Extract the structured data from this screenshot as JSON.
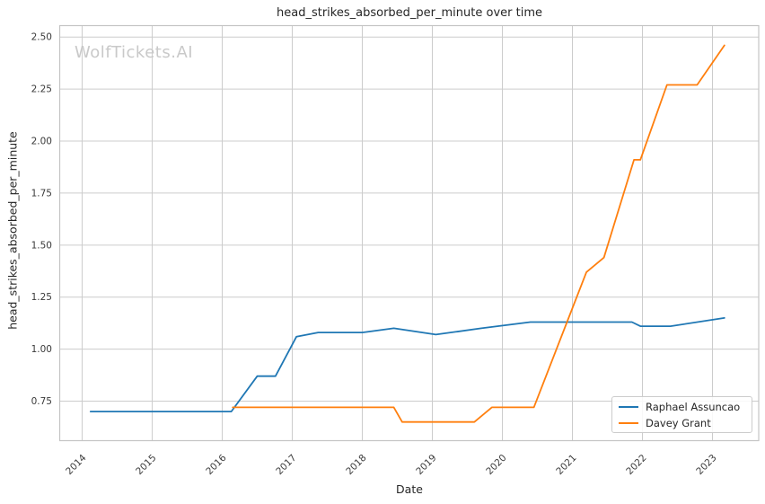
{
  "watermark": {
    "text": "WolfTickets.AI"
  },
  "chart_data": {
    "type": "line",
    "title": "head_strikes_absorbed_per_minute over time",
    "xlabel": "Date",
    "ylabel": "head_strikes_absorbed_per_minute",
    "xlim": [
      2013.68,
      2023.66
    ],
    "ylim": [
      0.56,
      2.555
    ],
    "xticks": [
      2014,
      2015,
      2016,
      2017,
      2018,
      2019,
      2020,
      2021,
      2022,
      2023
    ],
    "yticks": [
      0.75,
      1.0,
      1.25,
      1.5,
      1.75,
      2.0,
      2.25,
      2.5
    ],
    "grid": true,
    "grid_color": "#cccccc",
    "spine_color": "#c4c4c4",
    "tick_label_color": "#3a3a3a",
    "legend_position": "lower right",
    "series": [
      {
        "name": "Raphael Assuncao",
        "color": "#1f77b4",
        "points": [
          [
            2014.12,
            0.7
          ],
          [
            2016.13,
            0.7
          ],
          [
            2016.5,
            0.87
          ],
          [
            2016.76,
            0.87
          ],
          [
            2017.06,
            1.06
          ],
          [
            2017.37,
            1.08
          ],
          [
            2018.0,
            1.08
          ],
          [
            2018.45,
            1.1
          ],
          [
            2019.05,
            1.07
          ],
          [
            2019.7,
            1.1
          ],
          [
            2020.4,
            1.13
          ],
          [
            2021.85,
            1.13
          ],
          [
            2021.97,
            1.11
          ],
          [
            2022.4,
            1.11
          ],
          [
            2023.17,
            1.15
          ]
        ]
      },
      {
        "name": "Davey Grant",
        "color": "#ff7f0e",
        "points": [
          [
            2016.15,
            0.72
          ],
          [
            2018.45,
            0.72
          ],
          [
            2018.57,
            0.65
          ],
          [
            2019.6,
            0.65
          ],
          [
            2019.85,
            0.72
          ],
          [
            2020.45,
            0.72
          ],
          [
            2021.2,
            1.37
          ],
          [
            2021.45,
            1.44
          ],
          [
            2021.88,
            1.91
          ],
          [
            2021.97,
            1.91
          ],
          [
            2022.35,
            2.27
          ],
          [
            2022.78,
            2.27
          ],
          [
            2023.17,
            2.46
          ]
        ]
      }
    ]
  }
}
